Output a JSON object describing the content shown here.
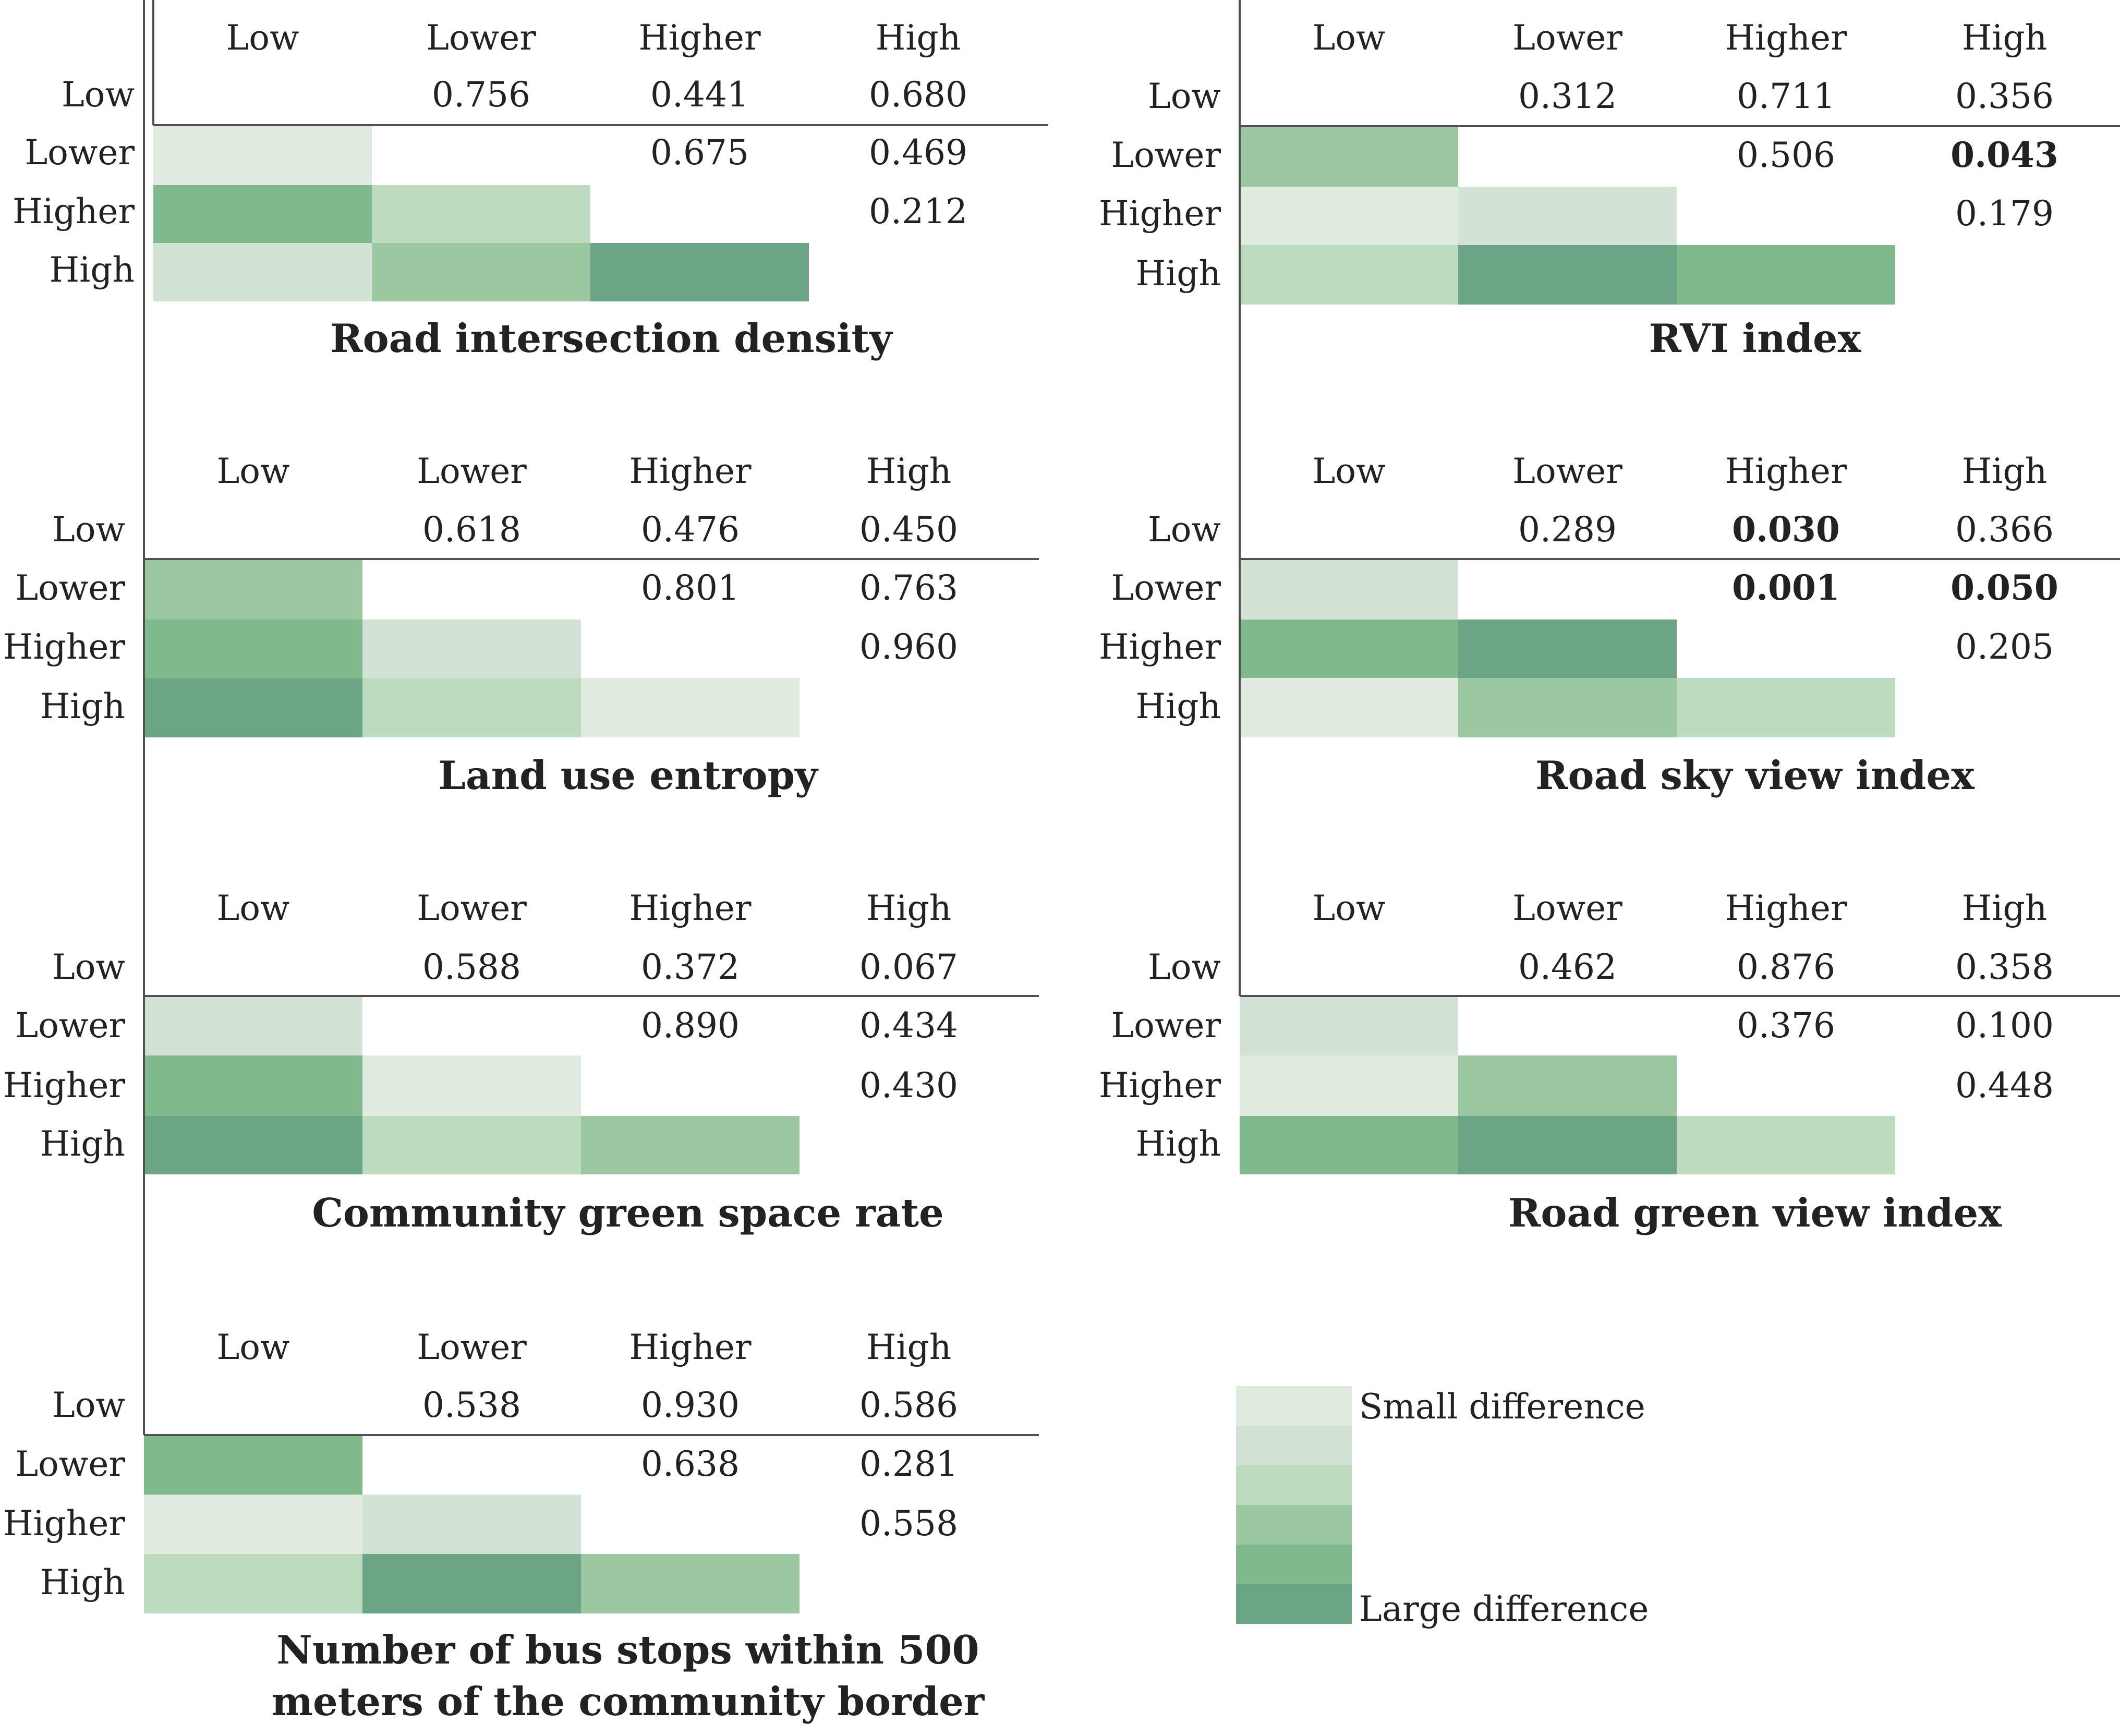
{
  "levels": [
    "Low",
    "Lower",
    "Higher",
    "High"
  ],
  "colors": {
    "text": "#222222",
    "axis": "#505050",
    "scale": [
      "#e0ebe0",
      "#d2e2d4",
      "#bddbbf",
      "#9bc8a1",
      "#80b98b",
      "#6ba585"
    ]
  },
  "legend": {
    "small": "Small difference",
    "large": "Large difference"
  },
  "chart_data": [
    {
      "type": "heatmap",
      "title": "Road intersection density",
      "levels": [
        "Low",
        "Lower",
        "Higher",
        "High"
      ],
      "p_values": [
        {
          "row": "Low",
          "col": "Lower",
          "text": "0.756",
          "bold": false
        },
        {
          "row": "Low",
          "col": "Higher",
          "text": "0.441",
          "bold": false
        },
        {
          "row": "Low",
          "col": "High",
          "text": "0.680",
          "bold": false
        },
        {
          "row": "Lower",
          "col": "Higher",
          "text": "0.675",
          "bold": false
        },
        {
          "row": "Lower",
          "col": "High",
          "text": "0.469",
          "bold": false
        },
        {
          "row": "Higher",
          "col": "High",
          "text": "0.212",
          "bold": false
        }
      ],
      "difference_levels": [
        {
          "row": "Lower",
          "col": "Low",
          "level": 0
        },
        {
          "row": "Higher",
          "col": "Low",
          "level": 4
        },
        {
          "row": "Higher",
          "col": "Lower",
          "level": 2
        },
        {
          "row": "High",
          "col": "Low",
          "level": 1
        },
        {
          "row": "High",
          "col": "Lower",
          "level": 3
        },
        {
          "row": "High",
          "col": "Higher",
          "level": 5
        }
      ]
    },
    {
      "type": "heatmap",
      "title": "RVI index",
      "levels": [
        "Low",
        "Lower",
        "Higher",
        "High"
      ],
      "p_values": [
        {
          "row": "Low",
          "col": "Lower",
          "text": "0.312",
          "bold": false
        },
        {
          "row": "Low",
          "col": "Higher",
          "text": "0.711",
          "bold": false
        },
        {
          "row": "Low",
          "col": "High",
          "text": "0.356",
          "bold": false
        },
        {
          "row": "Lower",
          "col": "Higher",
          "text": "0.506",
          "bold": false
        },
        {
          "row": "Lower",
          "col": "High",
          "text": "0.043",
          "bold": true
        },
        {
          "row": "Higher",
          "col": "High",
          "text": "0.179",
          "bold": false
        }
      ],
      "difference_levels": [
        {
          "row": "Lower",
          "col": "Low",
          "level": 3
        },
        {
          "row": "Higher",
          "col": "Low",
          "level": 0
        },
        {
          "row": "Higher",
          "col": "Lower",
          "level": 1
        },
        {
          "row": "High",
          "col": "Low",
          "level": 2
        },
        {
          "row": "High",
          "col": "Lower",
          "level": 5
        },
        {
          "row": "High",
          "col": "Higher",
          "level": 4
        }
      ]
    },
    {
      "type": "heatmap",
      "title": "Land use entropy",
      "levels": [
        "Low",
        "Lower",
        "Higher",
        "High"
      ],
      "p_values": [
        {
          "row": "Low",
          "col": "Lower",
          "text": "0.618",
          "bold": false
        },
        {
          "row": "Low",
          "col": "Higher",
          "text": "0.476",
          "bold": false
        },
        {
          "row": "Low",
          "col": "High",
          "text": "0.450",
          "bold": false
        },
        {
          "row": "Lower",
          "col": "Higher",
          "text": "0.801",
          "bold": false
        },
        {
          "row": "Lower",
          "col": "High",
          "text": "0.763",
          "bold": false
        },
        {
          "row": "Higher",
          "col": "High",
          "text": "0.960",
          "bold": false
        }
      ],
      "difference_levels": [
        {
          "row": "Lower",
          "col": "Low",
          "level": 3
        },
        {
          "row": "Higher",
          "col": "Low",
          "level": 4
        },
        {
          "row": "Higher",
          "col": "Lower",
          "level": 1
        },
        {
          "row": "High",
          "col": "Low",
          "level": 5
        },
        {
          "row": "High",
          "col": "Lower",
          "level": 2
        },
        {
          "row": "High",
          "col": "Higher",
          "level": 0
        }
      ]
    },
    {
      "type": "heatmap",
      "title": "Road sky view index",
      "levels": [
        "Low",
        "Lower",
        "Higher",
        "High"
      ],
      "p_values": [
        {
          "row": "Low",
          "col": "Lower",
          "text": "0.289",
          "bold": false
        },
        {
          "row": "Low",
          "col": "Higher",
          "text": "0.030",
          "bold": true
        },
        {
          "row": "Low",
          "col": "High",
          "text": "0.366",
          "bold": false
        },
        {
          "row": "Lower",
          "col": "Higher",
          "text": "0.001",
          "bold": true
        },
        {
          "row": "Lower",
          "col": "High",
          "text": "0.050",
          "bold": true
        },
        {
          "row": "Higher",
          "col": "High",
          "text": "0.205",
          "bold": false
        }
      ],
      "difference_levels": [
        {
          "row": "Lower",
          "col": "Low",
          "level": 1
        },
        {
          "row": "Higher",
          "col": "Low",
          "level": 4
        },
        {
          "row": "Higher",
          "col": "Lower",
          "level": 5
        },
        {
          "row": "High",
          "col": "Low",
          "level": 0
        },
        {
          "row": "High",
          "col": "Lower",
          "level": 3
        },
        {
          "row": "High",
          "col": "Higher",
          "level": 2
        }
      ]
    },
    {
      "type": "heatmap",
      "title": "Community green space rate",
      "levels": [
        "Low",
        "Lower",
        "Higher",
        "High"
      ],
      "p_values": [
        {
          "row": "Low",
          "col": "Lower",
          "text": "0.588",
          "bold": false
        },
        {
          "row": "Low",
          "col": "Higher",
          "text": "0.372",
          "bold": false
        },
        {
          "row": "Low",
          "col": "High",
          "text": "0.067",
          "bold": false
        },
        {
          "row": "Lower",
          "col": "Higher",
          "text": "0.890",
          "bold": false
        },
        {
          "row": "Lower",
          "col": "High",
          "text": "0.434",
          "bold": false
        },
        {
          "row": "Higher",
          "col": "High",
          "text": "0.430",
          "bold": false
        }
      ],
      "difference_levels": [
        {
          "row": "Lower",
          "col": "Low",
          "level": 1
        },
        {
          "row": "Higher",
          "col": "Low",
          "level": 4
        },
        {
          "row": "Higher",
          "col": "Lower",
          "level": 0
        },
        {
          "row": "High",
          "col": "Low",
          "level": 5
        },
        {
          "row": "High",
          "col": "Lower",
          "level": 2
        },
        {
          "row": "High",
          "col": "Higher",
          "level": 3
        }
      ]
    },
    {
      "type": "heatmap",
      "title": "Road green view index",
      "levels": [
        "Low",
        "Lower",
        "Higher",
        "High"
      ],
      "p_values": [
        {
          "row": "Low",
          "col": "Lower",
          "text": "0.462",
          "bold": false
        },
        {
          "row": "Low",
          "col": "Higher",
          "text": "0.876",
          "bold": false
        },
        {
          "row": "Low",
          "col": "High",
          "text": "0.358",
          "bold": false
        },
        {
          "row": "Lower",
          "col": "Higher",
          "text": "0.376",
          "bold": false
        },
        {
          "row": "Lower",
          "col": "High",
          "text": "0.100",
          "bold": false
        },
        {
          "row": "Higher",
          "col": "High",
          "text": "0.448",
          "bold": false
        }
      ],
      "difference_levels": [
        {
          "row": "Lower",
          "col": "Low",
          "level": 1
        },
        {
          "row": "Higher",
          "col": "Low",
          "level": 0
        },
        {
          "row": "Higher",
          "col": "Lower",
          "level": 3
        },
        {
          "row": "High",
          "col": "Low",
          "level": 4
        },
        {
          "row": "High",
          "col": "Lower",
          "level": 5
        },
        {
          "row": "High",
          "col": "Higher",
          "level": 2
        }
      ]
    },
    {
      "type": "heatmap",
      "title": "Number of bus stops within 500",
      "title_line2": "meters of the community border",
      "levels": [
        "Low",
        "Lower",
        "Higher",
        "High"
      ],
      "p_values": [
        {
          "row": "Low",
          "col": "Lower",
          "text": "0.538",
          "bold": false
        },
        {
          "row": "Low",
          "col": "Higher",
          "text": "0.930",
          "bold": false
        },
        {
          "row": "Low",
          "col": "High",
          "text": "0.586",
          "bold": false
        },
        {
          "row": "Lower",
          "col": "Higher",
          "text": "0.638",
          "bold": false
        },
        {
          "row": "Lower",
          "col": "High",
          "text": "0.281",
          "bold": false
        },
        {
          "row": "Higher",
          "col": "High",
          "text": "0.558",
          "bold": false
        }
      ],
      "difference_levels": [
        {
          "row": "Lower",
          "col": "Low",
          "level": 4
        },
        {
          "row": "Higher",
          "col": "Low",
          "level": 0
        },
        {
          "row": "Higher",
          "col": "Lower",
          "level": 1
        },
        {
          "row": "High",
          "col": "Low",
          "level": 2
        },
        {
          "row": "High",
          "col": "Lower",
          "level": 5
        },
        {
          "row": "High",
          "col": "Higher",
          "level": 3
        }
      ]
    }
  ]
}
